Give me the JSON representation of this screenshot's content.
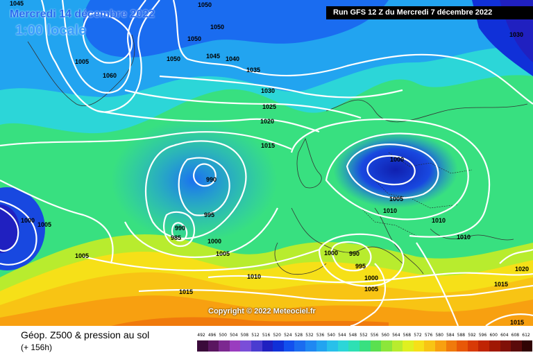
{
  "header": {
    "date": "Mercredi 14 décembre 2022",
    "local_time": "1:00 locale",
    "run": "Run GFS 12 Z du Mercredi 7 décembre 2022"
  },
  "footer": {
    "title": "Géop. Z500 & pression au sol",
    "step": "(+ 156h)"
  },
  "copyright": "Copyright © 2022 Meteociel.fr",
  "scale": {
    "labels": [
      "492",
      "496",
      "500",
      "504",
      "508",
      "512",
      "516",
      "520",
      "524",
      "528",
      "532",
      "536",
      "540",
      "544",
      "548",
      "552",
      "556",
      "560",
      "564",
      "568",
      "572",
      "576",
      "580",
      "584",
      "588",
      "592",
      "596",
      "600",
      "604",
      "608",
      "612"
    ],
    "colors": [
      "#3a0a3a",
      "#5a1660",
      "#7c2890",
      "#9a3cbf",
      "#7a4ed8",
      "#4a3cd0",
      "#2020c0",
      "#1030d8",
      "#1250ee",
      "#1a6cf0",
      "#1f88f2",
      "#22a4f0",
      "#28c0ea",
      "#2cd6d8",
      "#2ee0b4",
      "#38e080",
      "#5ae050",
      "#8ce63a",
      "#b8ec2e",
      "#e0f020",
      "#f6e018",
      "#f8c414",
      "#f8a010",
      "#f07a0c",
      "#e85808",
      "#d83a06",
      "#c02404",
      "#a01804",
      "#801008",
      "#5a0a0a",
      "#300404"
    ]
  },
  "isobars": [
    "1045",
    "1050",
    "1050",
    "1005",
    "1060",
    "1050",
    "1050",
    "1045",
    "1040",
    "1035",
    "1030",
    "1025",
    "1020",
    "1015",
    "990",
    "995",
    "990",
    "985",
    "1000",
    "1005",
    "1000",
    "1005",
    "1005",
    "1000",
    "1005",
    "1010",
    "1010",
    "1010",
    "990",
    "995",
    "1000",
    "1000",
    "1005",
    "1010",
    "1015",
    "1020",
    "1030",
    "1015",
    "1015"
  ]
}
